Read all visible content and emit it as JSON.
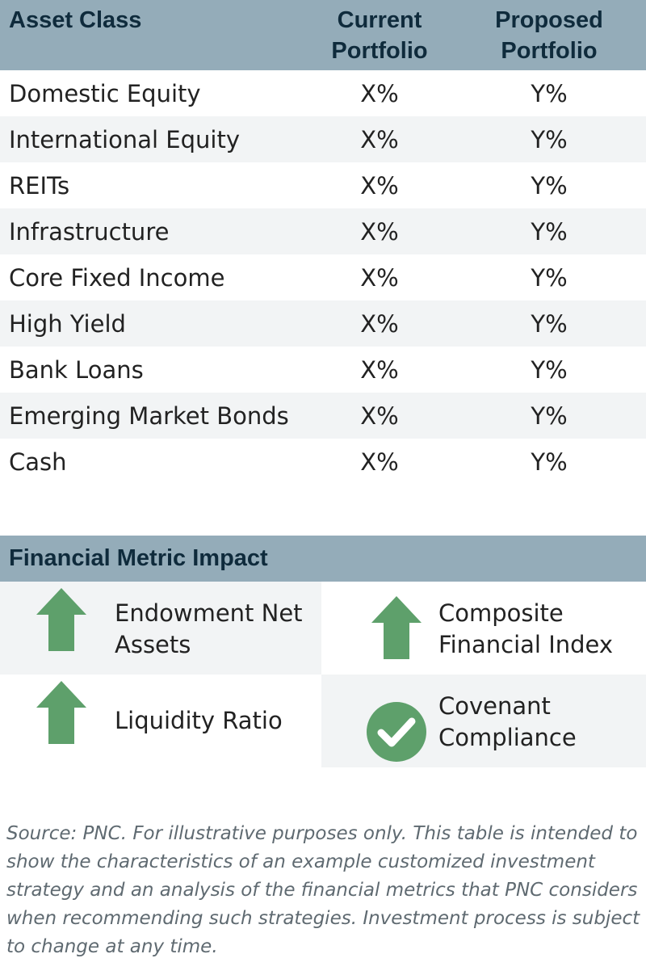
{
  "table": {
    "headers": {
      "asset_class": "Asset Class",
      "current_line1": "Current",
      "current_line2": "Portfolio",
      "proposed_line1": "Proposed",
      "proposed_line2": "Portfolio"
    },
    "rows": [
      {
        "asset": "Domestic Equity",
        "current": "X%",
        "proposed": "Y%"
      },
      {
        "asset": "International Equity",
        "current": "X%",
        "proposed": "Y%"
      },
      {
        "asset": "REITs",
        "current": "X%",
        "proposed": "Y%"
      },
      {
        "asset": "Infrastructure",
        "current": "X%",
        "proposed": "Y%"
      },
      {
        "asset": "Core Fixed Income",
        "current": "X%",
        "proposed": "Y%"
      },
      {
        "asset": "High Yield",
        "current": "X%",
        "proposed": "Y%"
      },
      {
        "asset": "Bank Loans",
        "current": "X%",
        "proposed": "Y%"
      },
      {
        "asset": "Emerging Market Bonds",
        "current": "X%",
        "proposed": "Y%"
      },
      {
        "asset": "Cash",
        "current": "X%",
        "proposed": "Y%"
      }
    ]
  },
  "impact": {
    "title": "Financial Metric Impact",
    "items": [
      {
        "line1": "Endowment Net",
        "line2": "Assets",
        "icon": "arrow-up-icon"
      },
      {
        "line1": "Composite",
        "line2": "Financial Index",
        "icon": "arrow-up-icon"
      },
      {
        "line1": "Liquidity Ratio",
        "line2": "",
        "icon": "arrow-up-icon"
      },
      {
        "line1": "Covenant",
        "line2": "Compliance",
        "icon": "check-circle-icon"
      }
    ],
    "icon_color": "#5ea06b"
  },
  "source": "Source: PNC. For illustrative purposes only. This table is intended to show the characteristics of an example customized investment strategy and an analysis of the financial metrics that PNC considers when recommending such strategies. Investment process is subject to change at any time."
}
